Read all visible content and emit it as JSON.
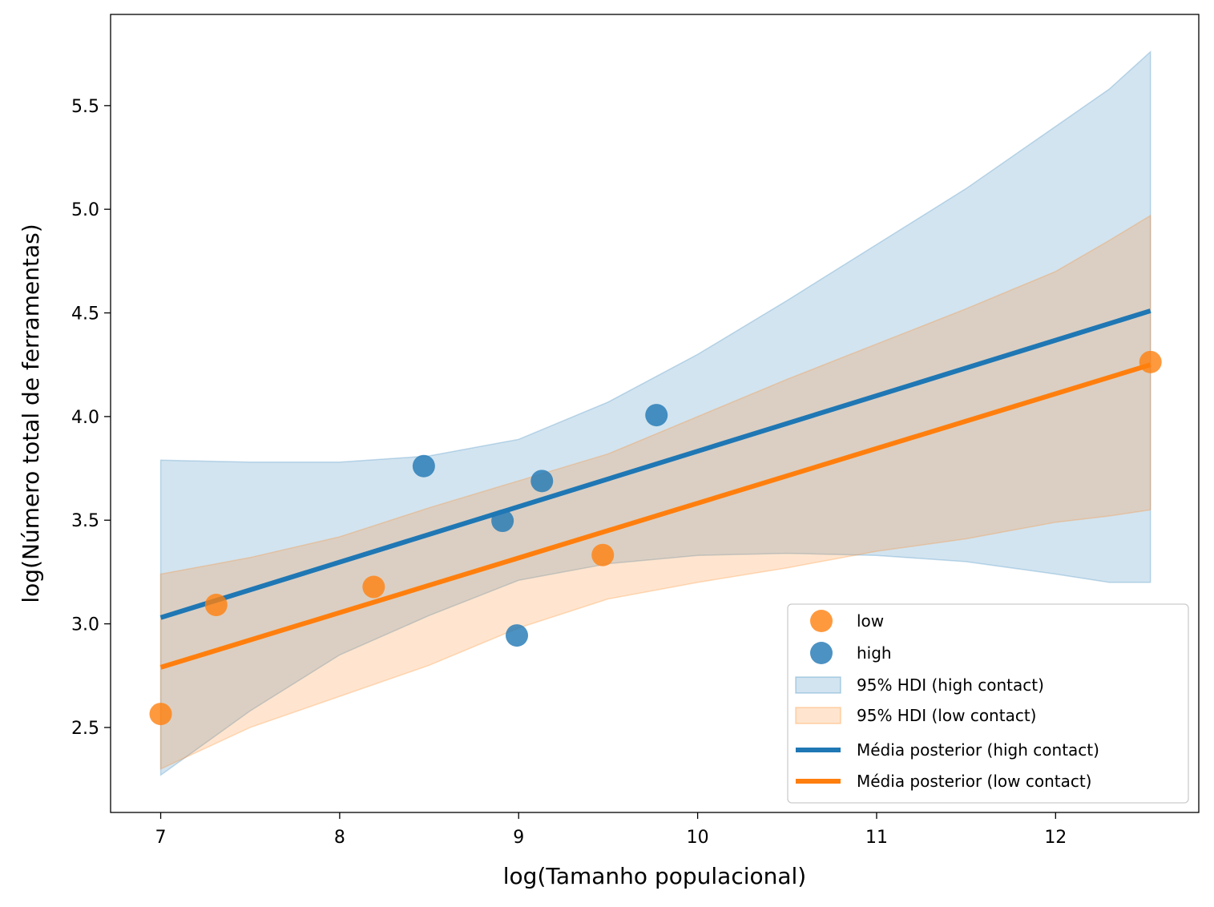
{
  "chart_data": {
    "type": "scatter",
    "title": "",
    "xlabel": "log(Tamanho populacional)",
    "ylabel": "log(Número total de ferramentas)",
    "xlim": [
      6.72,
      12.8
    ],
    "ylim": [
      2.09,
      5.94
    ],
    "xticks": [
      7,
      8,
      9,
      10,
      11,
      12
    ],
    "yticks": [
      2.5,
      3.0,
      3.5,
      4.0,
      4.5,
      5.0,
      5.5
    ],
    "xtick_labels": [
      "7",
      "8",
      "9",
      "10",
      "11",
      "12"
    ],
    "ytick_labels": [
      "2.5",
      "3.0",
      "3.5",
      "4.0",
      "4.5",
      "5.0",
      "5.5"
    ],
    "grid": false,
    "legend_position": "lower-right",
    "colors": {
      "high": "#1f77b4",
      "low": "#ff7f0e"
    },
    "points": {
      "low": [
        {
          "x": 7.0,
          "y": 2.565
        },
        {
          "x": 7.31,
          "y": 3.091
        },
        {
          "x": 8.19,
          "y": 3.178
        },
        {
          "x": 9.47,
          "y": 3.332
        },
        {
          "x": 12.53,
          "y": 4.263
        }
      ],
      "high": [
        {
          "x": 8.47,
          "y": 3.761
        },
        {
          "x": 8.91,
          "y": 3.497
        },
        {
          "x": 8.99,
          "y": 2.944
        },
        {
          "x": 9.13,
          "y": 3.689
        },
        {
          "x": 9.77,
          "y": 4.007
        }
      ]
    },
    "hdi_high": {
      "x": [
        7.0,
        7.5,
        8.0,
        8.5,
        9.0,
        9.5,
        10.0,
        10.5,
        11.0,
        11.5,
        12.0,
        12.3,
        12.53
      ],
      "lower": [
        2.27,
        2.58,
        2.85,
        3.04,
        3.21,
        3.29,
        3.33,
        3.34,
        3.33,
        3.3,
        3.24,
        3.2,
        3.2
      ],
      "upper": [
        3.79,
        3.78,
        3.78,
        3.81,
        3.89,
        4.07,
        4.3,
        4.56,
        4.83,
        5.1,
        5.4,
        5.58,
        5.76
      ]
    },
    "hdi_low": {
      "x": [
        7.0,
        7.5,
        8.0,
        8.5,
        9.0,
        9.5,
        10.0,
        10.5,
        11.0,
        11.5,
        12.0,
        12.3,
        12.53
      ],
      "lower": [
        2.3,
        2.5,
        2.65,
        2.8,
        2.98,
        3.12,
        3.2,
        3.27,
        3.35,
        3.41,
        3.49,
        3.52,
        3.55
      ],
      "upper": [
        3.24,
        3.32,
        3.42,
        3.56,
        3.69,
        3.82,
        4.0,
        4.18,
        4.35,
        4.52,
        4.7,
        4.85,
        4.97
      ]
    },
    "series": [
      {
        "name": "Média posterior (high contact)",
        "x": [
          7.0,
          12.53
        ],
        "y": [
          3.03,
          4.51
        ]
      },
      {
        "name": "Média posterior (low contact)",
        "x": [
          7.0,
          12.53
        ],
        "y": [
          2.79,
          4.25
        ]
      }
    ],
    "legend": [
      {
        "label": "low",
        "kind": "marker",
        "color": "#ff7f0e"
      },
      {
        "label": "high",
        "kind": "marker",
        "color": "#1f77b4"
      },
      {
        "label": "95% HDI (high contact)",
        "kind": "patch",
        "color": "#1f77b4"
      },
      {
        "label": "95% HDI (low contact)",
        "kind": "patch",
        "color": "#ff7f0e"
      },
      {
        "label": "Média posterior (high contact)",
        "kind": "line",
        "color": "#1f77b4"
      },
      {
        "label": "Média posterior (low contact)",
        "kind": "line",
        "color": "#ff7f0e"
      }
    ]
  }
}
